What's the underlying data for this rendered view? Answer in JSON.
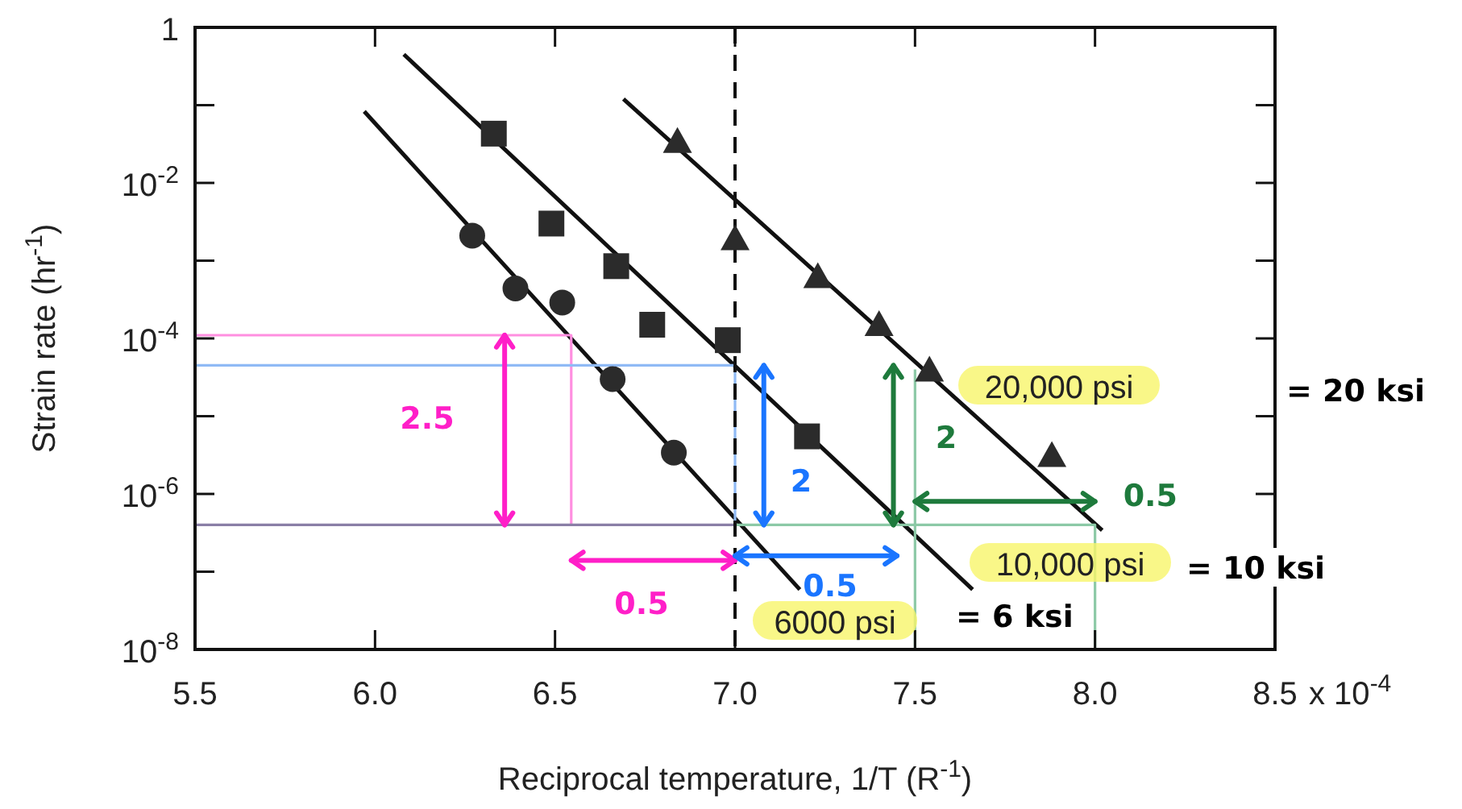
{
  "chart_data": {
    "type": "scatter",
    "xlabel": "Reciprocal temperature, 1/T (R$^{-1}$)",
    "ylabel": "Strain rate (hr$^{-1}$)",
    "xlim": [
      5.5,
      8.5
    ],
    "xticks": [
      5.5,
      {
        "value": 6,
        "label": "6.0"
      },
      6.5,
      {
        "value": 7,
        "label": "7.0"
      },
      7.5,
      {
        "value": 8,
        "label": "8.0"
      },
      8.5
    ],
    "ylim": [
      1e-08,
      1
    ],
    "yticks": [
      1,
      {
        "value": 0.1,
        "label": null
      },
      {
        "value": 0.01,
        "label": "10$^{-2}$"
      },
      {
        "value": 0.001,
        "label": null
      },
      {
        "value": 0.0001,
        "label": "10$^{-4}$"
      },
      {
        "value": 1e-05,
        "label": null
      },
      {
        "value": 1e-06,
        "label": "10$^{-6}$"
      },
      {
        "value": 1e-07,
        "label": null
      },
      {
        "value": 1e-08,
        "label": "10$^{-8}$"
      }
    ],
    "log": "y",
    "grid": false,
    "series": [
      {
        "marker": "circle",
        "color": "#2b2b2b",
        "x": [
          6.27,
          6.39,
          6.52,
          6.66,
          6.83
        ],
        "values": [
          0.0021,
          0.00044,
          0.00029,
          3e-05,
          3.4e-06
        ]
      },
      {
        "marker": "square",
        "color": "#2b2b2b",
        "x": [
          6.33,
          6.49,
          6.67,
          6.77,
          6.98,
          7.2
        ],
        "values": [
          0.043,
          0.003,
          0.00085,
          0.00015,
          9.5e-05,
          5.5e-06
        ]
      },
      {
        "marker": "triangle",
        "color": "#2b2b2b",
        "x": [
          6.84,
          7.0,
          7.23,
          7.4,
          7.54,
          7.88
        ],
        "values": [
          0.034,
          0.0019,
          0.00062,
          0.00015,
          3.9e-05,
          3.1e-06
        ]
      },
      {
        "type": "line",
        "color": "#111111",
        "x": [
          5.97,
          7.18
        ],
        "values": [
          0.083,
          5.9e-08
        ]
      },
      {
        "type": "line",
        "color": "#111111",
        "x": [
          6.08,
          7.66
        ],
        "values": [
          0.45,
          5.9e-08
        ]
      },
      {
        "type": "line",
        "color": "#111111",
        "x": [
          6.69,
          8.02
        ],
        "values": [
          0.12,
          3.4e-07
        ]
      },
      {
        "type": "line",
        "color": "#ff8fe0",
        "x": [
          5.5,
          6.545,
          6.545
        ],
        "values": [
          0.00011,
          0.00011,
          4e-07
        ]
      },
      {
        "type": "line",
        "color": "#8fbaf5",
        "x": [
          5.5,
          7.0,
          7.0
        ],
        "values": [
          4.5e-05,
          4.5e-05,
          4e-07
        ]
      },
      {
        "type": "line",
        "color": "#8a7fa6",
        "x": [
          5.5,
          7.0
        ],
        "values": [
          4e-07,
          4e-07
        ]
      },
      {
        "type": "line",
        "color": "#8cc9a6",
        "x": [
          7.0,
          8.0,
          8.0
        ],
        "values": [
          4e-07,
          4e-07,
          1e-08
        ]
      },
      {
        "type": "line",
        "color": "#8cc9a6",
        "x": [
          7.5,
          7.5
        ],
        "values": [
          4e-05,
          1e-08
        ]
      }
    ],
    "ref_lines": [
      {
        "axis": "x",
        "value": 7,
        "label": null,
        "color": "#111111",
        "line_style": "dashed"
      }
    ],
    "annotations": [
      "20,000 psi",
      "= 20 ksi",
      "10,000 psi",
      "= 10 ksi",
      "6000 psi",
      "= 6 ksi",
      "2.5",
      "0.5",
      "2",
      {
        "text": "0.5",
        "x": 7.0,
        "y": 1.6e-07
      },
      "2",
      {
        "text": "0.5",
        "x": 7.5,
        "y": 8e-07
      },
      "x 10$^{-4}$"
    ]
  }
}
